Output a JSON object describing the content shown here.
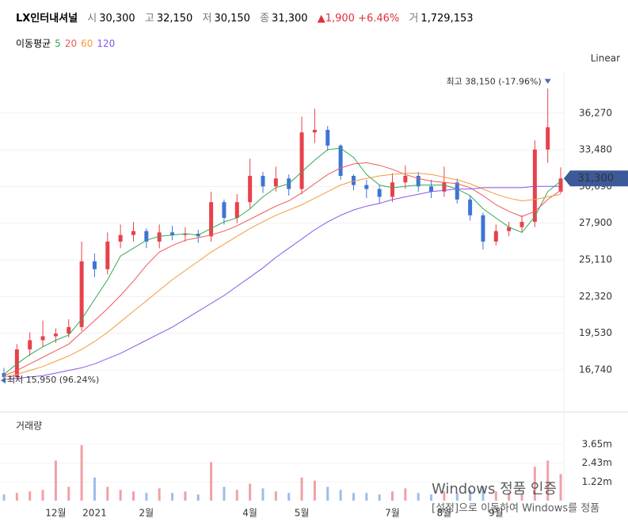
{
  "header": {
    "name": "LX인터내셔널",
    "items": [
      {
        "label": "시",
        "value": "30,300"
      },
      {
        "label": "고",
        "value": "32,150"
      },
      {
        "label": "저",
        "value": "30,150"
      },
      {
        "label": "종",
        "value": "31,300"
      }
    ],
    "change": "1,900",
    "change_pct": "+6.46%",
    "volume_label": "거",
    "volume": "1,729,153"
  },
  "chart_data": {
    "type": "candlestick",
    "scale_label": "Linear",
    "categories": [
      null,
      null,
      null,
      null,
      "12월",
      null,
      null,
      "2021",
      null,
      null,
      null,
      "2월",
      null,
      null,
      null,
      null,
      null,
      null,
      null,
      "4월",
      null,
      null,
      null,
      "5월",
      null,
      null,
      null,
      null,
      null,
      null,
      "7월",
      null,
      null,
      null,
      "8월",
      null,
      null,
      null,
      "9월",
      null,
      null,
      null,
      null,
      null
    ],
    "open": [
      16500,
      16200,
      18300,
      19000,
      19300,
      19500,
      20000,
      25000,
      24400,
      26500,
      27000,
      27300,
      26500,
      27200,
      27000,
      27100,
      26900,
      29500,
      28300,
      29500,
      31500,
      30700,
      31300,
      30500,
      34800,
      35000,
      33800,
      31500,
      30800,
      30500,
      29900,
      31000,
      31500,
      30700,
      30300,
      31000,
      29700,
      28500,
      26500,
      27300,
      27600,
      28000,
      33500,
      30300
    ],
    "high": [
      16900,
      18700,
      19600,
      20500,
      19900,
      20600,
      26500,
      25600,
      27200,
      27800,
      28000,
      27500,
      27800,
      27700,
      27600,
      27400,
      30300,
      29700,
      30100,
      32800,
      31800,
      32200,
      31600,
      36000,
      36600,
      35300,
      33900,
      31600,
      31200,
      30800,
      31700,
      32300,
      31800,
      31200,
      32200,
      31300,
      30000,
      28700,
      27800,
      28000,
      28500,
      34200,
      38150,
      32150
    ],
    "low": [
      15950,
      16000,
      17800,
      18500,
      18800,
      19200,
      19700,
      23800,
      24000,
      26000,
      26500,
      26000,
      26000,
      26600,
      26500,
      26400,
      26500,
      27800,
      27900,
      29000,
      30200,
      30300,
      30000,
      30100,
      34000,
      33400,
      31200,
      30400,
      29800,
      29400,
      29500,
      30500,
      30300,
      29800,
      29900,
      29400,
      28100,
      25900,
      26200,
      26900,
      27200,
      27600,
      32500,
      30150
    ],
    "close": [
      16200,
      18300,
      19000,
      19300,
      19500,
      20000,
      25000,
      24400,
      26500,
      27000,
      27300,
      26500,
      27200,
      27000,
      27100,
      26900,
      29500,
      28300,
      29500,
      31500,
      30700,
      31300,
      30500,
      34800,
      35000,
      33800,
      31500,
      30800,
      30500,
      29900,
      31000,
      31500,
      30700,
      30300,
      31000,
      29700,
      28500,
      26500,
      27300,
      27600,
      28000,
      33500,
      35200,
      31300
    ],
    "up_color": "#e8414a",
    "down_color": "#3f74d6",
    "ylim": [
      14750,
      39150
    ],
    "yticks": [
      {
        "value": 16740,
        "label": "16,740"
      },
      {
        "value": 19530,
        "label": "19,530"
      },
      {
        "value": 22320,
        "label": "22,320"
      },
      {
        "value": 25110,
        "label": "25,110"
      },
      {
        "value": 27900,
        "label": "27,900"
      },
      {
        "value": 30690,
        "label": "30,690"
      },
      {
        "value": 33480,
        "label": "33,480"
      },
      {
        "value": 36270,
        "label": "36,270"
      }
    ],
    "grid": true,
    "last_price_label": "31,300",
    "annotations": {
      "max": "최고 38,150 (-17.96%)",
      "min": "최저 15,950 (96.24%)"
    },
    "moving_averages": {
      "title": "이동평균",
      "series": [
        {
          "name": "5",
          "color": "#33a853",
          "values": [
            16400,
            17200,
            17900,
            18500,
            19000,
            19400,
            20600,
            22100,
            23600,
            25400,
            26000,
            26600,
            26900,
            27000,
            27100,
            27000,
            27500,
            28000,
            28300,
            29000,
            29900,
            30600,
            30900,
            31800,
            32700,
            33500,
            33600,
            32900,
            31600,
            30800,
            30600,
            30700,
            30800,
            30800,
            30800,
            30500,
            30000,
            29000,
            28300,
            27600,
            27200,
            28400,
            30300,
            31100
          ]
        },
        {
          "name": "20",
          "color": "#ec5a5a",
          "values": [
            16300,
            16700,
            17200,
            17700,
            18200,
            18700,
            19600,
            20500,
            21400,
            22400,
            23500,
            24700,
            25700,
            26200,
            26600,
            26800,
            27000,
            27300,
            27700,
            28200,
            28700,
            29200,
            29600,
            30200,
            30900,
            31600,
            32100,
            32400,
            32500,
            32300,
            32000,
            31600,
            31300,
            31100,
            31000,
            30900,
            30600,
            30000,
            29300,
            28800,
            28400,
            28800,
            29700,
            30400
          ]
        },
        {
          "name": "60",
          "color": "#f39b3c",
          "values": [
            16200,
            16400,
            16700,
            17000,
            17400,
            17800,
            18300,
            18900,
            19600,
            20400,
            21200,
            22000,
            22800,
            23600,
            24300,
            25000,
            25700,
            26300,
            26900,
            27500,
            28000,
            28500,
            28900,
            29300,
            29800,
            30300,
            30800,
            31100,
            31300,
            31500,
            31600,
            31700,
            31700,
            31600,
            31400,
            31200,
            30900,
            30500,
            30100,
            29800,
            29600,
            29700,
            29900,
            30100
          ]
        },
        {
          "name": "120",
          "color": "#8a55e8",
          "values": [
            16000,
            16100,
            16200,
            16300,
            16500,
            16700,
            16900,
            17200,
            17600,
            18000,
            18500,
            19000,
            19500,
            20000,
            20600,
            21200,
            21800,
            22400,
            23100,
            23800,
            24500,
            25300,
            26000,
            26700,
            27400,
            28000,
            28500,
            28900,
            29200,
            29400,
            29700,
            29900,
            30100,
            30300,
            30400,
            30500,
            30500,
            30600,
            30600,
            30600,
            30600,
            30700,
            30700,
            30700
          ]
        }
      ]
    },
    "volume": {
      "title": "거래량",
      "values": [
        400000,
        500000,
        600000,
        700000,
        2600000,
        900000,
        3600000,
        1500000,
        900000,
        700000,
        600000,
        500000,
        800000,
        500000,
        600000,
        400000,
        2500000,
        900000,
        700000,
        1100000,
        800000,
        600000,
        500000,
        1500000,
        1300000,
        900000,
        700000,
        500000,
        500000,
        400000,
        600000,
        800000,
        500000,
        400000,
        600000,
        500000,
        700000,
        900000,
        600000,
        500000,
        400000,
        2200000,
        2600000,
        1729153
      ],
      "ylim": [
        0,
        5500000
      ],
      "yticks": [
        {
          "value": 1220000,
          "label": "1.22m"
        },
        {
          "value": 2430000,
          "label": "2.43m"
        },
        {
          "value": 3650000,
          "label": "3.65m"
        }
      ],
      "up_color": "#f2a0a4",
      "down_color": "#9ebcec"
    }
  },
  "watermark": {
    "title": "Windows 정품 인증",
    "text": "[설정]으로 이동하여 Windows를 정품"
  }
}
